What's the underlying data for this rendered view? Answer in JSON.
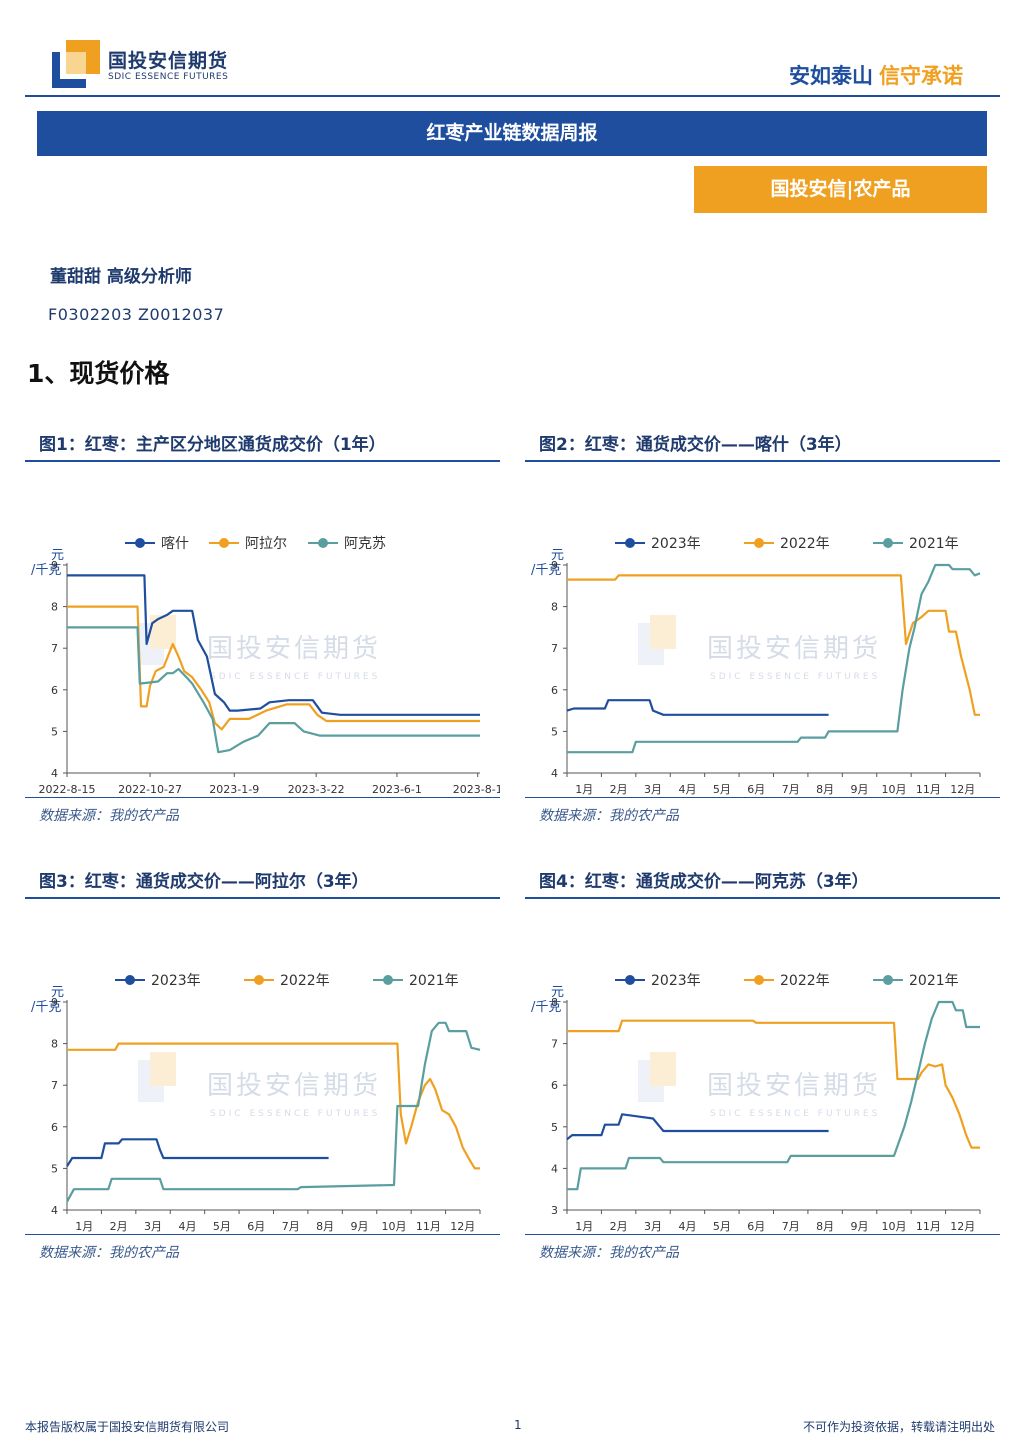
{
  "header": {
    "logo_cn": "国投安信期货",
    "logo_en": "SDIC ESSENCE FUTURES",
    "slogan_part1": "安如泰山",
    "slogan_part2": "信守承诺"
  },
  "report": {
    "title": "红枣产业链数据周报",
    "category": "国投安信|农产品",
    "author": "董甜甜 高级分析师",
    "cert": "F0302203 Z0012037",
    "section_title": "1、现货价格"
  },
  "watermark": {
    "cn": "国投安信期货",
    "en": "SDIC ESSENCE FUTURES"
  },
  "footer": {
    "left": "本报告版权属于国投安信期货有限公司",
    "page": "1",
    "right": "不可作为投资依据，转载请注明出处"
  },
  "colors": {
    "dark_blue": "#1f4e9e",
    "orange": "#f0a020",
    "teal": "#5a9ea0"
  },
  "chart_data": [
    {
      "panel_title": "图1：红枣：主产区分地区通货成交价（1年）",
      "source": "数据来源：我的农产品",
      "type": "line",
      "unit": "元/千克",
      "ylim": [
        4,
        9
      ],
      "yticks": [
        4,
        5,
        6,
        7,
        8,
        9
      ],
      "x_domain": [
        0,
        363
      ],
      "x_ticks": [
        {
          "x": 0,
          "label": "2022-8-15"
        },
        {
          "x": 73,
          "label": "2022-10-27"
        },
        {
          "x": 147,
          "label": "2023-1-9"
        },
        {
          "x": 219,
          "label": "2023-3-22"
        },
        {
          "x": 290,
          "label": "2023-6-1"
        },
        {
          "x": 361,
          "label": "2023-8-1"
        }
      ],
      "series": [
        {
          "name": "喀什",
          "color": "#1f4e9e",
          "points": [
            [
              0,
              8.75
            ],
            [
              68,
              8.75
            ],
            [
              70,
              7.1
            ],
            [
              75,
              7.6
            ],
            [
              80,
              7.7
            ],
            [
              88,
              7.8
            ],
            [
              93,
              7.9
            ],
            [
              110,
              7.9
            ],
            [
              115,
              7.2
            ],
            [
              123,
              6.8
            ],
            [
              130,
              5.9
            ],
            [
              138,
              5.7
            ],
            [
              143,
              5.5
            ],
            [
              150,
              5.5
            ],
            [
              170,
              5.55
            ],
            [
              178,
              5.7
            ],
            [
              195,
              5.75
            ],
            [
              216,
              5.75
            ],
            [
              224,
              5.45
            ],
            [
              240,
              5.4
            ],
            [
              363,
              5.4
            ]
          ]
        },
        {
          "name": "阿拉尔",
          "color": "#f0a020",
          "points": [
            [
              0,
              8.0
            ],
            [
              62,
              8.0
            ],
            [
              65,
              5.6
            ],
            [
              70,
              5.6
            ],
            [
              73,
              6.1
            ],
            [
              78,
              6.45
            ],
            [
              85,
              6.55
            ],
            [
              93,
              7.1
            ],
            [
              98,
              6.8
            ],
            [
              103,
              6.45
            ],
            [
              110,
              6.3
            ],
            [
              118,
              6.0
            ],
            [
              125,
              5.7
            ],
            [
              130,
              5.2
            ],
            [
              136,
              5.05
            ],
            [
              143,
              5.3
            ],
            [
              160,
              5.3
            ],
            [
              175,
              5.5
            ],
            [
              193,
              5.65
            ],
            [
              213,
              5.65
            ],
            [
              220,
              5.4
            ],
            [
              228,
              5.25
            ],
            [
              363,
              5.25
            ]
          ]
        },
        {
          "name": "阿克苏",
          "color": "#5a9ea0",
          "points": [
            [
              0,
              7.5
            ],
            [
              62,
              7.5
            ],
            [
              64,
              6.15
            ],
            [
              80,
              6.2
            ],
            [
              88,
              6.4
            ],
            [
              93,
              6.4
            ],
            [
              98,
              6.5
            ],
            [
              105,
              6.3
            ],
            [
              110,
              6.15
            ],
            [
              120,
              5.7
            ],
            [
              128,
              5.3
            ],
            [
              133,
              4.5
            ],
            [
              143,
              4.55
            ],
            [
              155,
              4.75
            ],
            [
              168,
              4.9
            ],
            [
              178,
              5.2
            ],
            [
              200,
              5.2
            ],
            [
              208,
              5.0
            ],
            [
              222,
              4.9
            ],
            [
              363,
              4.9
            ]
          ]
        }
      ]
    },
    {
      "panel_title": "图2：红枣：通货成交价——喀什（3年）",
      "source": "数据来源：我的农产品",
      "type": "line",
      "unit": "元/千克",
      "ylim": [
        4,
        9
      ],
      "yticks": [
        4,
        5,
        6,
        7,
        8,
        9
      ],
      "x_domain": [
        0,
        12
      ],
      "x_ticks": [
        {
          "x": 0.5,
          "label": "1月"
        },
        {
          "x": 1.5,
          "label": "2月"
        },
        {
          "x": 2.5,
          "label": "3月"
        },
        {
          "x": 3.5,
          "label": "4月"
        },
        {
          "x": 4.5,
          "label": "5月"
        },
        {
          "x": 5.5,
          "label": "6月"
        },
        {
          "x": 6.5,
          "label": "7月"
        },
        {
          "x": 7.5,
          "label": "8月"
        },
        {
          "x": 8.5,
          "label": "9月"
        },
        {
          "x": 9.5,
          "label": "10月"
        },
        {
          "x": 10.5,
          "label": "11月"
        },
        {
          "x": 11.5,
          "label": "12月"
        }
      ],
      "series": [
        {
          "name": "2023年",
          "color": "#1f4e9e",
          "points": [
            [
              0,
              5.5
            ],
            [
              0.2,
              5.55
            ],
            [
              1.1,
              5.55
            ],
            [
              1.2,
              5.75
            ],
            [
              2.4,
              5.75
            ],
            [
              2.5,
              5.5
            ],
            [
              2.8,
              5.4
            ],
            [
              7.6,
              5.4
            ]
          ]
        },
        {
          "name": "2022年",
          "color": "#f0a020",
          "points": [
            [
              0,
              8.65
            ],
            [
              1.4,
              8.65
            ],
            [
              1.5,
              8.75
            ],
            [
              9.7,
              8.75
            ],
            [
              9.85,
              7.1
            ],
            [
              10.05,
              7.6
            ],
            [
              10.3,
              7.75
            ],
            [
              10.5,
              7.9
            ],
            [
              11.0,
              7.9
            ],
            [
              11.1,
              7.4
            ],
            [
              11.3,
              7.4
            ],
            [
              11.45,
              6.8
            ],
            [
              11.7,
              6.0
            ],
            [
              11.85,
              5.4
            ],
            [
              12,
              5.4
            ]
          ]
        },
        {
          "name": "2021年",
          "color": "#5a9ea0",
          "points": [
            [
              0,
              4.5
            ],
            [
              1.9,
              4.5
            ],
            [
              2.0,
              4.75
            ],
            [
              6.7,
              4.75
            ],
            [
              6.8,
              4.85
            ],
            [
              7.5,
              4.85
            ],
            [
              7.6,
              5.0
            ],
            [
              9.6,
              5.0
            ],
            [
              9.75,
              6.0
            ],
            [
              9.95,
              7.0
            ],
            [
              10.1,
              7.5
            ],
            [
              10.3,
              8.3
            ],
            [
              10.5,
              8.6
            ],
            [
              10.7,
              9.0
            ],
            [
              11.1,
              9.0
            ],
            [
              11.2,
              8.9
            ],
            [
              11.7,
              8.9
            ],
            [
              11.85,
              8.75
            ],
            [
              12,
              8.8
            ]
          ]
        }
      ]
    },
    {
      "panel_title": "图3：红枣：通货成交价——阿拉尔（3年）",
      "source": "数据来源：我的农产品",
      "type": "line",
      "unit": "元/千克",
      "ylim": [
        4,
        9
      ],
      "yticks": [
        4,
        5,
        6,
        7,
        8,
        9
      ],
      "x_domain": [
        0,
        12
      ],
      "x_ticks": [
        {
          "x": 0.5,
          "label": "1月"
        },
        {
          "x": 1.5,
          "label": "2月"
        },
        {
          "x": 2.5,
          "label": "3月"
        },
        {
          "x": 3.5,
          "label": "4月"
        },
        {
          "x": 4.5,
          "label": "5月"
        },
        {
          "x": 5.5,
          "label": "6月"
        },
        {
          "x": 6.5,
          "label": "7月"
        },
        {
          "x": 7.5,
          "label": "8月"
        },
        {
          "x": 8.5,
          "label": "9月"
        },
        {
          "x": 9.5,
          "label": "10月"
        },
        {
          "x": 10.5,
          "label": "11月"
        },
        {
          "x": 11.5,
          "label": "12月"
        }
      ],
      "series": [
        {
          "name": "2023年",
          "color": "#1f4e9e",
          "points": [
            [
              0,
              5.05
            ],
            [
              0.15,
              5.25
            ],
            [
              1.0,
              5.25
            ],
            [
              1.1,
              5.6
            ],
            [
              1.5,
              5.6
            ],
            [
              1.6,
              5.7
            ],
            [
              2.6,
              5.7
            ],
            [
              2.7,
              5.45
            ],
            [
              2.8,
              5.25
            ],
            [
              7.6,
              5.25
            ]
          ]
        },
        {
          "name": "2022年",
          "color": "#f0a020",
          "points": [
            [
              0,
              7.85
            ],
            [
              1.4,
              7.85
            ],
            [
              1.5,
              8.0
            ],
            [
              9.6,
              8.0
            ],
            [
              9.7,
              6.3
            ],
            [
              9.85,
              5.6
            ],
            [
              10.0,
              6.0
            ],
            [
              10.2,
              6.6
            ],
            [
              10.4,
              7.0
            ],
            [
              10.55,
              7.15
            ],
            [
              10.7,
              6.9
            ],
            [
              10.9,
              6.4
            ],
            [
              11.1,
              6.3
            ],
            [
              11.3,
              6.0
            ],
            [
              11.5,
              5.5
            ],
            [
              11.7,
              5.2
            ],
            [
              11.85,
              5.0
            ],
            [
              12,
              5.0
            ]
          ]
        },
        {
          "name": "2021年",
          "color": "#5a9ea0",
          "points": [
            [
              0,
              4.2
            ],
            [
              0.2,
              4.5
            ],
            [
              1.2,
              4.5
            ],
            [
              1.3,
              4.75
            ],
            [
              2.7,
              4.75
            ],
            [
              2.8,
              4.5
            ],
            [
              6.7,
              4.5
            ],
            [
              6.8,
              4.55
            ],
            [
              9.5,
              4.6
            ],
            [
              9.6,
              6.5
            ],
            [
              10.2,
              6.5
            ],
            [
              10.4,
              7.5
            ],
            [
              10.6,
              8.3
            ],
            [
              10.8,
              8.5
            ],
            [
              11.0,
              8.5
            ],
            [
              11.1,
              8.3
            ],
            [
              11.6,
              8.3
            ],
            [
              11.75,
              7.9
            ],
            [
              12,
              7.85
            ]
          ]
        }
      ]
    },
    {
      "panel_title": "图4：红枣：通货成交价——阿克苏（3年）",
      "source": "数据来源：我的农产品",
      "type": "line",
      "unit": "元/千克",
      "ylim": [
        3,
        8
      ],
      "yticks": [
        3,
        4,
        5,
        6,
        7,
        8
      ],
      "x_domain": [
        0,
        12
      ],
      "x_ticks": [
        {
          "x": 0.5,
          "label": "1月"
        },
        {
          "x": 1.5,
          "label": "2月"
        },
        {
          "x": 2.5,
          "label": "3月"
        },
        {
          "x": 3.5,
          "label": "4月"
        },
        {
          "x": 4.5,
          "label": "5月"
        },
        {
          "x": 5.5,
          "label": "6月"
        },
        {
          "x": 6.5,
          "label": "7月"
        },
        {
          "x": 7.5,
          "label": "8月"
        },
        {
          "x": 8.5,
          "label": "9月"
        },
        {
          "x": 9.5,
          "label": "10月"
        },
        {
          "x": 10.5,
          "label": "11月"
        },
        {
          "x": 11.5,
          "label": "12月"
        }
      ],
      "series": [
        {
          "name": "2023年",
          "color": "#1f4e9e",
          "points": [
            [
              0,
              4.7
            ],
            [
              0.15,
              4.8
            ],
            [
              1.0,
              4.8
            ],
            [
              1.1,
              5.05
            ],
            [
              1.5,
              5.05
            ],
            [
              1.6,
              5.3
            ],
            [
              2.5,
              5.2
            ],
            [
              2.7,
              5.0
            ],
            [
              2.8,
              4.9
            ],
            [
              7.6,
              4.9
            ]
          ]
        },
        {
          "name": "2022年",
          "color": "#f0a020",
          "points": [
            [
              0,
              7.3
            ],
            [
              1.5,
              7.3
            ],
            [
              1.6,
              7.55
            ],
            [
              5.4,
              7.55
            ],
            [
              5.5,
              7.5
            ],
            [
              9.5,
              7.5
            ],
            [
              9.6,
              6.15
            ],
            [
              10.2,
              6.15
            ],
            [
              10.3,
              6.3
            ],
            [
              10.5,
              6.5
            ],
            [
              10.7,
              6.45
            ],
            [
              10.9,
              6.5
            ],
            [
              11.0,
              6.0
            ],
            [
              11.2,
              5.7
            ],
            [
              11.4,
              5.3
            ],
            [
              11.6,
              4.8
            ],
            [
              11.75,
              4.5
            ],
            [
              12,
              4.5
            ]
          ]
        },
        {
          "name": "2021年",
          "color": "#5a9ea0",
          "points": [
            [
              0,
              3.5
            ],
            [
              0.3,
              3.5
            ],
            [
              0.4,
              4.0
            ],
            [
              1.7,
              4.0
            ],
            [
              1.8,
              4.25
            ],
            [
              2.7,
              4.25
            ],
            [
              2.8,
              4.15
            ],
            [
              6.4,
              4.15
            ],
            [
              6.5,
              4.3
            ],
            [
              9.5,
              4.3
            ],
            [
              9.8,
              5.0
            ],
            [
              10.0,
              5.6
            ],
            [
              10.2,
              6.3
            ],
            [
              10.4,
              7.0
            ],
            [
              10.6,
              7.6
            ],
            [
              10.8,
              8.0
            ],
            [
              11.2,
              8.0
            ],
            [
              11.3,
              7.8
            ],
            [
              11.5,
              7.8
            ],
            [
              11.6,
              7.4
            ],
            [
              12,
              7.4
            ]
          ]
        }
      ]
    }
  ]
}
